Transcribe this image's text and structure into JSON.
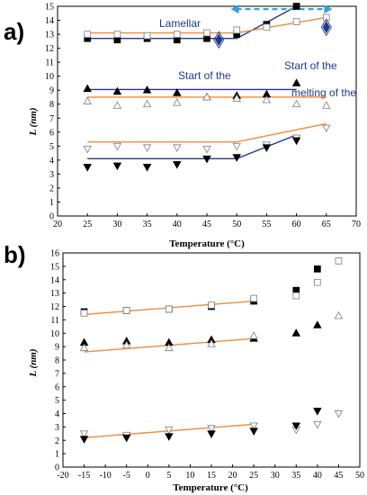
{
  "chart_data": [
    {
      "type": "scatter",
      "panel_label": "a)",
      "xlabel": "Temperature (°C)",
      "ylabel": "L (nm)",
      "xlim": [
        20,
        70
      ],
      "ylim": [
        0,
        15
      ],
      "x_ticks": [
        "20",
        "25",
        "30",
        "35",
        "40",
        "45",
        "50",
        "55",
        "60",
        "65",
        "70"
      ],
      "y_ticks": [
        "0",
        "1",
        "2",
        "3",
        "4",
        "5",
        "6",
        "7",
        "8",
        "9",
        "10",
        "11",
        "12",
        "13",
        "14",
        "15"
      ],
      "grid": false,
      "annotations": [
        "Lamellar",
        "Start of the",
        "Start of the",
        "melting of the"
      ],
      "colors": {
        "fit_orange": "#f08a3c",
        "fit_navy": "#1f3a8a",
        "arrow": "#3aa0d8",
        "diamond": "#1f3a8a"
      },
      "series": [
        {
          "marker": "square-filled",
          "x": [
            25,
            30,
            35,
            40,
            45,
            50,
            55,
            60
          ],
          "y": [
            12.7,
            12.6,
            12.7,
            12.6,
            12.7,
            13.0,
            13.7,
            15.0
          ]
        },
        {
          "marker": "square-open",
          "x": [
            25,
            30,
            35,
            40,
            45,
            50,
            55,
            60,
            65
          ],
          "y": [
            13.0,
            13.0,
            12.9,
            13.0,
            13.1,
            13.3,
            13.5,
            13.9,
            14.2
          ]
        },
        {
          "marker": "triangle-up-filled",
          "x": [
            25,
            30,
            35,
            40,
            45,
            50,
            55,
            60
          ],
          "y": [
            9.1,
            8.9,
            9.0,
            8.8,
            8.5,
            8.6,
            8.7,
            9.5
          ]
        },
        {
          "marker": "triangle-up-open",
          "x": [
            25,
            30,
            35,
            40,
            45,
            50,
            55,
            60,
            65
          ],
          "y": [
            8.2,
            7.9,
            8.0,
            8.1,
            8.5,
            8.4,
            8.3,
            8.0,
            7.9
          ]
        },
        {
          "marker": "triangle-down-open",
          "x": [
            25,
            30,
            35,
            40,
            45,
            50,
            55,
            60,
            65
          ],
          "y": [
            4.8,
            5.0,
            4.9,
            4.9,
            4.8,
            5.0,
            5.1,
            5.6,
            6.3
          ]
        },
        {
          "marker": "triangle-down-filled",
          "x": [
            25,
            30,
            35,
            40,
            45,
            50,
            55,
            60
          ],
          "y": [
            3.5,
            3.6,
            3.5,
            3.7,
            4.1,
            4.2,
            4.9,
            5.4
          ]
        },
        {
          "marker": "diamond-filled",
          "x": [
            47,
            65
          ],
          "y": [
            12.6,
            13.5
          ]
        }
      ],
      "fits": [
        {
          "color": "fit_navy",
          "x": [
            25,
            50,
            60
          ],
          "y": [
            12.7,
            12.7,
            15.0
          ]
        },
        {
          "color": "fit_orange",
          "x": [
            25,
            50,
            65
          ],
          "y": [
            13.1,
            13.1,
            14.2
          ]
        },
        {
          "color": "fit_navy",
          "x": [
            25,
            60
          ],
          "y": [
            9.05,
            9.05
          ]
        },
        {
          "color": "fit_orange",
          "x": [
            25,
            65
          ],
          "y": [
            8.5,
            8.5
          ]
        },
        {
          "color": "fit_orange",
          "x": [
            25,
            50,
            65
          ],
          "y": [
            5.3,
            5.3,
            6.6
          ]
        },
        {
          "color": "fit_navy",
          "x": [
            25,
            50,
            60
          ],
          "y": [
            4.1,
            4.1,
            5.8
          ]
        }
      ],
      "range_arrow": {
        "x": [
          49,
          66
        ],
        "y": 14.8
      }
    },
    {
      "type": "scatter",
      "panel_label": "b)",
      "xlabel": "Temperature (°C)",
      "ylabel": "L (nm)",
      "xlim": [
        -20,
        50
      ],
      "ylim": [
        0,
        16
      ],
      "x_ticks": [
        "-20",
        "-15",
        "-10",
        "-5",
        "0",
        "5",
        "10",
        "15",
        "20",
        "25",
        "30",
        "35",
        "40",
        "45",
        "50"
      ],
      "y_ticks": [
        "0",
        "1",
        "2",
        "3",
        "4",
        "5",
        "6",
        "7",
        "8",
        "9",
        "10",
        "11",
        "12",
        "13",
        "14",
        "15",
        "16"
      ],
      "grid": false,
      "colors": {
        "fit_orange": "#f08a3c"
      },
      "series": [
        {
          "marker": "square-filled",
          "x": [
            -15,
            -5,
            5,
            15,
            25,
            35,
            40
          ],
          "y": [
            11.6,
            11.7,
            11.8,
            12.0,
            12.4,
            13.2,
            14.8
          ]
        },
        {
          "marker": "square-open",
          "x": [
            -15,
            -5,
            5,
            15,
            25,
            35,
            40,
            45
          ],
          "y": [
            11.5,
            11.7,
            11.8,
            12.1,
            12.6,
            12.8,
            13.8,
            15.4
          ]
        },
        {
          "marker": "triangle-up-filled",
          "x": [
            -15,
            -5,
            5,
            15,
            25,
            35,
            40
          ],
          "y": [
            9.3,
            9.4,
            9.3,
            9.5,
            9.6,
            10.0,
            10.6
          ]
        },
        {
          "marker": "triangle-up-open",
          "x": [
            -15,
            -5,
            5,
            15,
            25,
            45
          ],
          "y": [
            8.9,
            9.1,
            8.9,
            9.2,
            9.8,
            11.3
          ]
        },
        {
          "marker": "triangle-down-open",
          "x": [
            -15,
            -5,
            5,
            15,
            25,
            35,
            40,
            45
          ],
          "y": [
            2.5,
            2.4,
            2.8,
            2.9,
            3.1,
            2.8,
            3.2,
            4.0
          ]
        },
        {
          "marker": "triangle-down-filled",
          "x": [
            -15,
            -5,
            5,
            15,
            25,
            35,
            40
          ],
          "y": [
            2.1,
            2.2,
            2.3,
            2.5,
            2.7,
            3.1,
            4.2
          ]
        }
      ],
      "fits": [
        {
          "color": "fit_orange",
          "x": [
            -15,
            25
          ],
          "y": [
            11.4,
            12.4
          ]
        },
        {
          "color": "fit_orange",
          "x": [
            -15,
            25
          ],
          "y": [
            8.6,
            9.6
          ]
        },
        {
          "color": "fit_orange",
          "x": [
            -15,
            25
          ],
          "y": [
            2.2,
            3.2
          ]
        }
      ]
    }
  ]
}
